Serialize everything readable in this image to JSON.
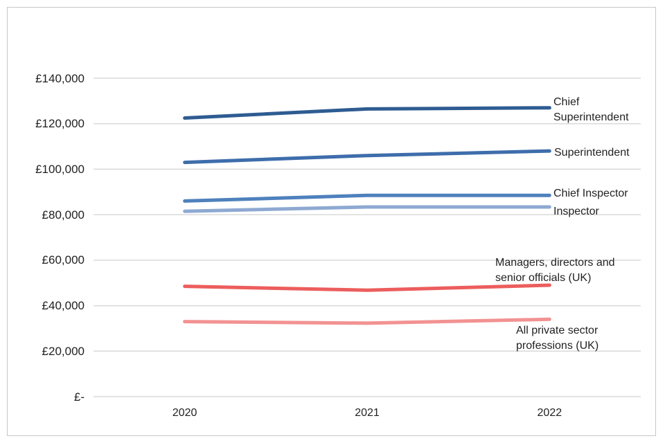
{
  "chart_data": {
    "type": "line",
    "title": "",
    "x": [
      "2020",
      "2021",
      "2022"
    ],
    "series": [
      {
        "name": "Chief Superintendent",
        "label": "Chief\nSuperintendent",
        "color": "#2E5C92",
        "values": [
          122500,
          126500,
          127000
        ]
      },
      {
        "name": "Superintendent",
        "label": "Superintendent",
        "color": "#3E6DAB",
        "values": [
          103000,
          106000,
          108000
        ]
      },
      {
        "name": "Chief Inspector",
        "label": "Chief Inspector",
        "color": "#4E81BD",
        "values": [
          86000,
          88500,
          88500
        ]
      },
      {
        "name": "Inspector",
        "label": "Inspector",
        "color": "#8EA9D2",
        "values": [
          81500,
          83400,
          83400
        ]
      },
      {
        "name": "Managers, directors and senior officials (UK)",
        "label": "Managers, directors and\nsenior officials (UK)",
        "color": "#EC5D5D",
        "values": [
          48500,
          46800,
          49000
        ]
      },
      {
        "name": "All private sector professions (UK)",
        "label": "All private sector\nprofessions (UK)",
        "color": "#F29292",
        "values": [
          33000,
          32300,
          34000
        ]
      }
    ],
    "yticks": {
      "labels": [
        "£140,000",
        "£120,000",
        "£100,000",
        "£80,000",
        "£60,000",
        "£40,000",
        "£20,000",
        "£-"
      ],
      "values": [
        140000,
        120000,
        100000,
        80000,
        60000,
        40000,
        20000,
        0
      ]
    },
    "ylim": [
      0,
      140000
    ],
    "xlabel": "",
    "ylabel": "",
    "grid": true,
    "gridline_color": "#D9D9D9",
    "line_width": 5,
    "legend_position": "labels-at-line-ends"
  }
}
